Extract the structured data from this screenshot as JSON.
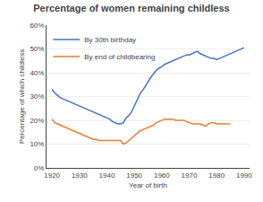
{
  "chart_data": {
    "type": "line",
    "title": "Percentage of women remaining childless",
    "x_label": "Year of birth",
    "y_label": "Percentage of which childless",
    "x": [
      1920,
      1921,
      1922,
      1923,
      1924,
      1925,
      1926,
      1927,
      1928,
      1929,
      1930,
      1931,
      1932,
      1933,
      1934,
      1935,
      1936,
      1937,
      1938,
      1939,
      1940,
      1941,
      1942,
      1943,
      1944,
      1945,
      1946,
      1947,
      1948,
      1949,
      1950,
      1951,
      1952,
      1953,
      1954,
      1955,
      1956,
      1957,
      1958,
      1959,
      1960,
      1961,
      1962,
      1963,
      1964,
      1965,
      1966,
      1967,
      1968,
      1969,
      1970,
      1971,
      1972,
      1973,
      1974,
      1975,
      1976,
      1977,
      1978,
      1979,
      1980,
      1981,
      1982,
      1983,
      1984,
      1985,
      1986,
      1987,
      1988,
      1989,
      1990
    ],
    "series": [
      {
        "name": "By 30th birthday",
        "color": "#4472C4",
        "values": [
          0.33,
          0.315,
          0.305,
          0.295,
          0.29,
          0.285,
          0.28,
          0.275,
          0.27,
          0.265,
          0.26,
          0.255,
          0.25,
          0.245,
          0.24,
          0.235,
          0.23,
          0.225,
          0.22,
          0.215,
          0.21,
          0.205,
          0.195,
          0.19,
          0.185,
          0.185,
          0.19,
          0.21,
          0.22,
          0.235,
          0.26,
          0.285,
          0.31,
          0.325,
          0.345,
          0.365,
          0.38,
          0.395,
          0.41,
          0.42,
          0.425,
          0.435,
          0.44,
          0.445,
          0.45,
          0.455,
          0.46,
          0.465,
          0.47,
          0.475,
          0.475,
          0.48,
          0.485,
          0.49,
          0.48,
          0.475,
          0.47,
          0.465,
          0.46,
          0.46,
          0.455,
          0.46,
          0.465,
          0.47,
          0.475,
          0.48,
          0.485,
          0.49,
          0.495,
          0.5,
          0.505
        ]
      },
      {
        "name": "By end of childbearing",
        "color": "#ED7D31",
        "values": [
          0.205,
          0.19,
          0.185,
          0.18,
          0.175,
          0.17,
          0.165,
          0.16,
          0.155,
          0.15,
          0.145,
          0.14,
          0.135,
          0.13,
          0.125,
          0.12,
          0.12,
          0.115,
          0.115,
          0.115,
          0.115,
          0.115,
          0.115,
          0.115,
          0.115,
          0.115,
          0.1,
          0.105,
          0.115,
          0.125,
          0.135,
          0.145,
          0.155,
          0.16,
          0.165,
          0.17,
          0.175,
          0.18,
          0.19,
          0.195,
          0.2,
          0.205,
          0.205,
          0.205,
          0.205,
          0.2,
          0.2,
          0.2,
          0.2,
          0.195,
          0.19,
          0.185,
          0.185,
          0.185,
          0.185,
          0.18,
          0.175,
          0.185,
          0.19,
          0.19,
          0.185,
          0.185,
          0.185,
          0.185,
          0.185,
          0.185,
          null,
          null,
          null,
          null,
          null
        ]
      }
    ],
    "xlim": [
      1918,
      1992
    ],
    "xticks": [
      1920,
      1930,
      1940,
      1950,
      1960,
      1970,
      1980,
      1990
    ],
    "ylim": [
      0,
      0.6
    ],
    "yticks": [
      {
        "value": 0.0,
        "label": "0%"
      },
      {
        "value": 0.1,
        "label": "10%"
      },
      {
        "value": 0.2,
        "label": "20%"
      },
      {
        "value": 0.3,
        "label": "30%"
      },
      {
        "value": 0.4,
        "label": "40%"
      },
      {
        "value": 0.5,
        "label": "50%"
      },
      {
        "value": 0.6,
        "label": "60%"
      }
    ],
    "grid": "y",
    "legend": "upper left"
  }
}
